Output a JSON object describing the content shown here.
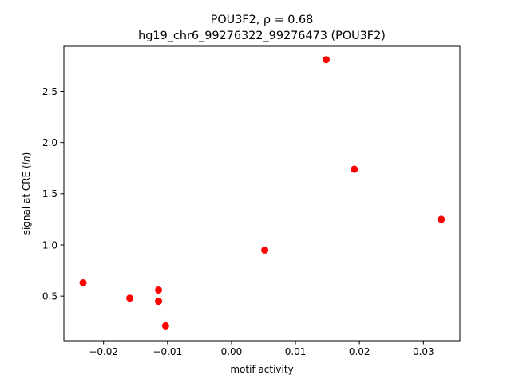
{
  "chart_data": {
    "type": "scatter",
    "title_line1": "POU3F2, ρ = 0.68",
    "title_line2": "hg19_chr6_99276322_99276473 (POU3F2)",
    "xlabel": "motif activity",
    "ylabel_prefix": "signal at CRE (",
    "ylabel_italic": "ln",
    "ylabel_suffix": ")",
    "xlim": [
      -0.0262,
      0.0357
    ],
    "ylim": [
      0.065,
      2.94
    ],
    "x_ticks": [
      -0.02,
      -0.01,
      0.0,
      0.01,
      0.02,
      0.03
    ],
    "x_tick_labels": [
      "−0.02",
      "−0.01",
      "0.00",
      "0.01",
      "0.02",
      "0.03"
    ],
    "y_ticks": [
      0.5,
      1.0,
      1.5,
      2.0,
      2.5
    ],
    "y_tick_labels": [
      "0.5",
      "1.0",
      "1.5",
      "2.0",
      "2.5"
    ],
    "marker_color": "#ff0000",
    "grid": false,
    "points": [
      {
        "x": -0.0232,
        "y": 0.63
      },
      {
        "x": -0.0159,
        "y": 0.48
      },
      {
        "x": -0.0114,
        "y": 0.56
      },
      {
        "x": -0.0114,
        "y": 0.45
      },
      {
        "x": -0.0103,
        "y": 0.21
      },
      {
        "x": 0.0052,
        "y": 0.95
      },
      {
        "x": 0.0148,
        "y": 2.81
      },
      {
        "x": 0.0192,
        "y": 1.74
      },
      {
        "x": 0.0328,
        "y": 1.25
      }
    ]
  }
}
